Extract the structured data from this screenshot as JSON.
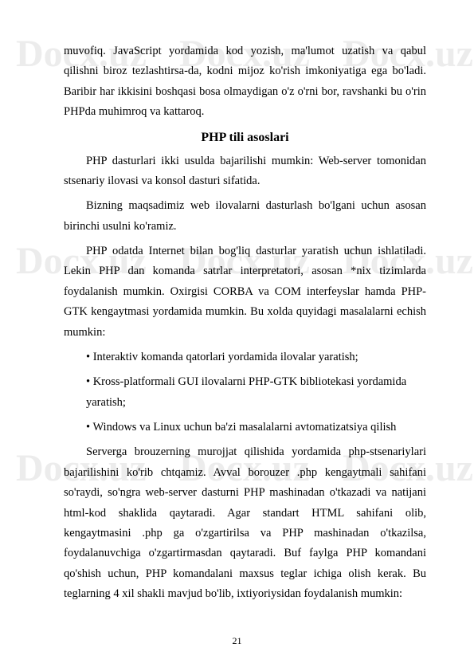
{
  "watermark": "Docx.uz",
  "pageNumber": "21",
  "heading": "PHP tili asoslari",
  "paragraphs": {
    "p1": "muvofiq. JavaScript yordamida kod yozish, ma'lumot uzatish va qabul qilishni biroz tezlashtirsa-da, kodni mijoz ko'rish imkoniyatiga ega bo'ladi. Baribir har ikkisini boshqasi bosa olmaydigan o'z o'rni bor, ravshanki bu o'rin PHPda muhimroq va kattaroq.",
    "p2": "PHP dasturlari ikki usulda bajarilishi mumkin: Web-server tomonidan stsenariy ilovasi va konsol dasturi sifatida.",
    "p3": "Bizning maqsadimiz web ilovalarni dasturlash bo'lgani uchun asosan birinchi usulni ko'ramiz.",
    "p4": "PHP odatda Internet bilan bog'liq dasturlar yaratish uchun ishlatiladi. Lekin PHP dan komanda satrlar interpretatori, asosan *nix tizimlarda foydalanish mumkin. Oxirgisi CORBA va COM interfeyslar hamda PHP-GTK kengaytmasi yordamida mumkin. Bu xolda quyidagi masalalarni echish mumkin:",
    "b1": "Interaktiv komanda qatorlari yordamida ilovalar yaratish;",
    "b2": "Kross-platformali GUI ilovalarni PHP-GTK bibliotekasi yordamida yaratish;",
    "b3": "Windows va Linux uchun ba'zi masalalarni avtomatizatsiya qilish",
    "p5": "Serverga brouzerning murojjat qilishida  yordamida php-stsenariylari bajarilishini ko'rib chtqamiz. Avval borouzer .php  kengaytmali sahifani so'raydi, so'ngra web-server dasturni PHP mashinadan o'tkazadi va natijani html-kod shaklida qaytaradi. Agar standart HTML sahifani olib, kengaytmasini .php ga o'zgartirilsa va PHP mashinadan o'tkazilsa, foydalanuvchiga o'zgartirmasdan qaytaradi. Buf faylga PHP komandani qo'shish uchun, PHP komandalani maxsus teglar ichiga olish kerak. Bu teglarning 4 xil shakli mavjud bo'lib, ixtiyoriysidan foydalanish mumkin:"
  }
}
